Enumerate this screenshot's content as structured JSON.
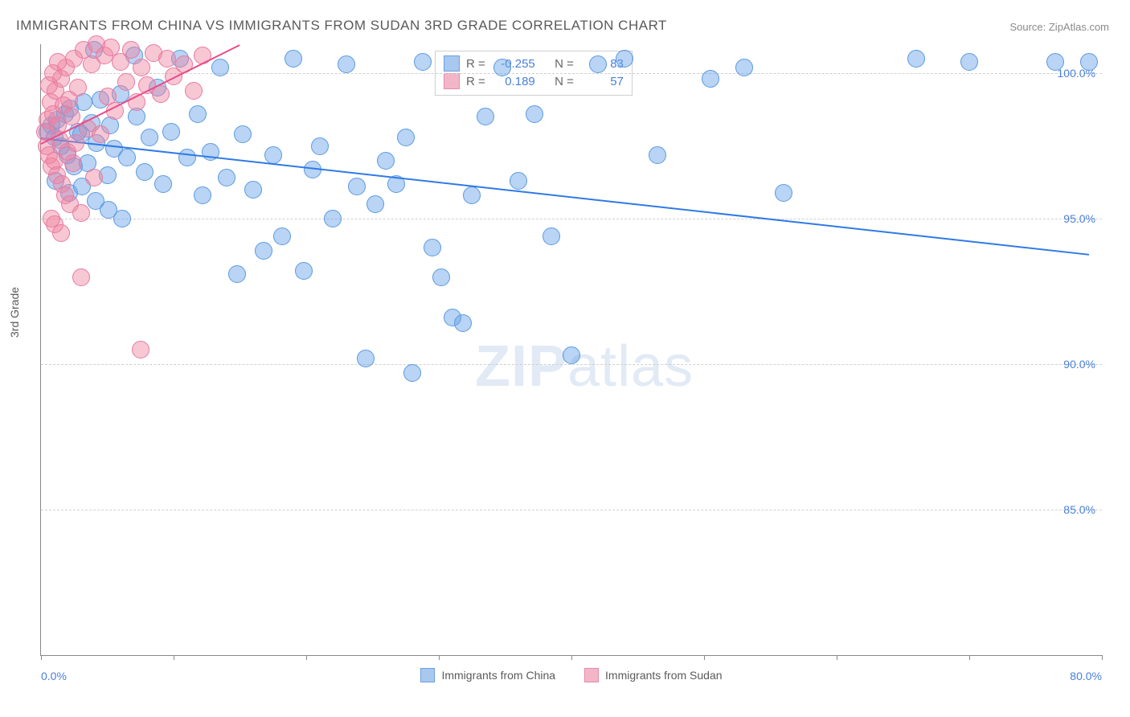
{
  "title": "IMMIGRANTS FROM CHINA VS IMMIGRANTS FROM SUDAN 3RD GRADE CORRELATION CHART",
  "source_label": "Source: ZipAtlas.com",
  "ylabel": "3rd Grade",
  "watermark": "ZIPatlas",
  "chart": {
    "type": "scatter",
    "background_color": "#ffffff",
    "grid_color": "#d0d0d0",
    "axis_color": "#888888",
    "xlim": [
      0,
      80
    ],
    "ylim": [
      80,
      101
    ],
    "xtick_positions": [
      0,
      10,
      20,
      30,
      40,
      50,
      60,
      70,
      80
    ],
    "xtick_labels_shown": {
      "0": "0.0%",
      "80": "80.0%"
    },
    "ytick_positions": [
      85,
      90,
      95,
      100
    ],
    "ytick_labels": [
      "85.0%",
      "90.0%",
      "95.0%",
      "100.0%"
    ],
    "marker_radius": 10,
    "marker_opacity": 0.5,
    "marker_border_width": 1.2,
    "axis_label_color": "#4a7fd8",
    "axis_label_fontsize": 14,
    "title_fontsize": 17,
    "title_color": "#5a5a5a"
  },
  "series": [
    {
      "name": "Immigrants from China",
      "color_fill": "rgba(100,160,230,0.45)",
      "color_stroke": "#5a9ae0",
      "swatch_fill": "#a9c8ef",
      "swatch_border": "#6aa0e0",
      "R": "-0.255",
      "N": "83",
      "trend": {
        "x1": 0,
        "y1": 97.8,
        "x2": 79,
        "y2": 93.8,
        "color": "#2f7ae5",
        "width": 2
      },
      "points": [
        [
          0.5,
          98.0
        ],
        [
          0.8,
          98.2
        ],
        [
          1.0,
          97.8
        ],
        [
          1.2,
          98.4
        ],
        [
          1.5,
          97.5
        ],
        [
          1.8,
          98.6
        ],
        [
          2.0,
          97.2
        ],
        [
          2.2,
          98.8
        ],
        [
          2.5,
          96.8
        ],
        [
          2.8,
          98.0
        ],
        [
          3.0,
          97.9
        ],
        [
          3.2,
          99.0
        ],
        [
          3.5,
          96.9
        ],
        [
          3.8,
          98.3
        ],
        [
          4.0,
          100.8
        ],
        [
          4.2,
          97.6
        ],
        [
          4.5,
          99.1
        ],
        [
          5.0,
          96.5
        ],
        [
          5.2,
          98.2
        ],
        [
          5.5,
          97.4
        ],
        [
          6.0,
          99.3
        ],
        [
          6.5,
          97.1
        ],
        [
          7.0,
          100.6
        ],
        [
          7.2,
          98.5
        ],
        [
          7.8,
          96.6
        ],
        [
          8.2,
          97.8
        ],
        [
          8.8,
          99.5
        ],
        [
          9.2,
          96.2
        ],
        [
          9.8,
          98.0
        ],
        [
          10.5,
          100.5
        ],
        [
          11.0,
          97.1
        ],
        [
          11.8,
          98.6
        ],
        [
          12.2,
          95.8
        ],
        [
          12.8,
          97.3
        ],
        [
          13.5,
          100.2
        ],
        [
          14.0,
          96.4
        ],
        [
          14.8,
          93.1
        ],
        [
          15.2,
          97.9
        ],
        [
          16.0,
          96.0
        ],
        [
          16.8,
          93.9
        ],
        [
          17.5,
          97.2
        ],
        [
          18.2,
          94.4
        ],
        [
          19.0,
          100.5
        ],
        [
          19.8,
          93.2
        ],
        [
          20.5,
          96.7
        ],
        [
          21.0,
          97.5
        ],
        [
          22.0,
          95.0
        ],
        [
          23.0,
          100.3
        ],
        [
          23.8,
          96.1
        ],
        [
          24.5,
          90.2
        ],
        [
          25.2,
          95.5
        ],
        [
          26.0,
          97.0
        ],
        [
          26.8,
          96.2
        ],
        [
          27.5,
          97.8
        ],
        [
          28.0,
          89.7
        ],
        [
          28.8,
          100.4
        ],
        [
          29.5,
          94.0
        ],
        [
          30.2,
          93.0
        ],
        [
          31.0,
          91.6
        ],
        [
          31.8,
          91.4
        ],
        [
          32.5,
          95.8
        ],
        [
          33.5,
          98.5
        ],
        [
          34.8,
          100.2
        ],
        [
          36.0,
          96.3
        ],
        [
          37.2,
          98.6
        ],
        [
          38.5,
          94.4
        ],
        [
          40.0,
          90.3
        ],
        [
          42.0,
          100.3
        ],
        [
          44.0,
          100.5
        ],
        [
          46.5,
          97.2
        ],
        [
          50.5,
          99.8
        ],
        [
          53.0,
          100.2
        ],
        [
          56.0,
          95.9
        ],
        [
          66.0,
          100.5
        ],
        [
          70.0,
          100.4
        ],
        [
          76.5,
          100.4
        ],
        [
          79.0,
          100.4
        ],
        [
          1.1,
          96.3
        ],
        [
          2.1,
          95.9
        ],
        [
          3.1,
          96.1
        ],
        [
          4.1,
          95.6
        ],
        [
          5.1,
          95.3
        ],
        [
          6.1,
          95.0
        ]
      ]
    },
    {
      "name": "Immigrants from Sudan",
      "color_fill": "rgba(240,130,160,0.45)",
      "color_stroke": "#e77aa0",
      "swatch_fill": "#f2b6c8",
      "swatch_border": "#e88aa8",
      "R": "0.189",
      "N": "57",
      "trend": {
        "x1": 0,
        "y1": 97.6,
        "x2": 15,
        "y2": 101.0,
        "color": "#e84d88",
        "width": 2
      },
      "points": [
        [
          0.3,
          98.0
        ],
        [
          0.4,
          97.5
        ],
        [
          0.5,
          98.4
        ],
        [
          0.6,
          97.2
        ],
        [
          0.7,
          99.0
        ],
        [
          0.8,
          96.8
        ],
        [
          0.9,
          98.6
        ],
        [
          1.0,
          97.0
        ],
        [
          1.1,
          99.4
        ],
        [
          1.2,
          96.5
        ],
        [
          1.3,
          98.2
        ],
        [
          1.4,
          97.7
        ],
        [
          1.5,
          99.8
        ],
        [
          1.6,
          96.2
        ],
        [
          1.7,
          98.9
        ],
        [
          1.8,
          95.8
        ],
        [
          1.9,
          100.2
        ],
        [
          2.0,
          97.3
        ],
        [
          2.1,
          99.1
        ],
        [
          2.2,
          95.5
        ],
        [
          2.3,
          98.5
        ],
        [
          2.4,
          96.9
        ],
        [
          2.5,
          100.5
        ],
        [
          2.6,
          97.6
        ],
        [
          2.8,
          99.5
        ],
        [
          3.0,
          95.2
        ],
        [
          3.2,
          100.8
        ],
        [
          3.5,
          98.1
        ],
        [
          3.8,
          100.3
        ],
        [
          4.0,
          96.4
        ],
        [
          4.2,
          101.0
        ],
        [
          4.5,
          97.9
        ],
        [
          4.8,
          100.6
        ],
        [
          5.0,
          99.2
        ],
        [
          5.3,
          100.9
        ],
        [
          5.6,
          98.7
        ],
        [
          6.0,
          100.4
        ],
        [
          6.4,
          99.7
        ],
        [
          6.8,
          100.8
        ],
        [
          7.2,
          99.0
        ],
        [
          7.6,
          100.2
        ],
        [
          8.0,
          99.6
        ],
        [
          8.5,
          100.7
        ],
        [
          9.0,
          99.3
        ],
        [
          9.5,
          100.5
        ],
        [
          10.0,
          99.9
        ],
        [
          10.8,
          100.3
        ],
        [
          11.5,
          99.4
        ],
        [
          12.2,
          100.6
        ],
        [
          1.0,
          94.8
        ],
        [
          1.5,
          94.5
        ],
        [
          0.8,
          95.0
        ],
        [
          7.5,
          90.5
        ],
        [
          3.0,
          93.0
        ],
        [
          0.6,
          99.6
        ],
        [
          0.9,
          100.0
        ],
        [
          1.3,
          100.4
        ]
      ]
    }
  ],
  "legend_top": {
    "R_label": "R =",
    "N_label": "N ="
  }
}
